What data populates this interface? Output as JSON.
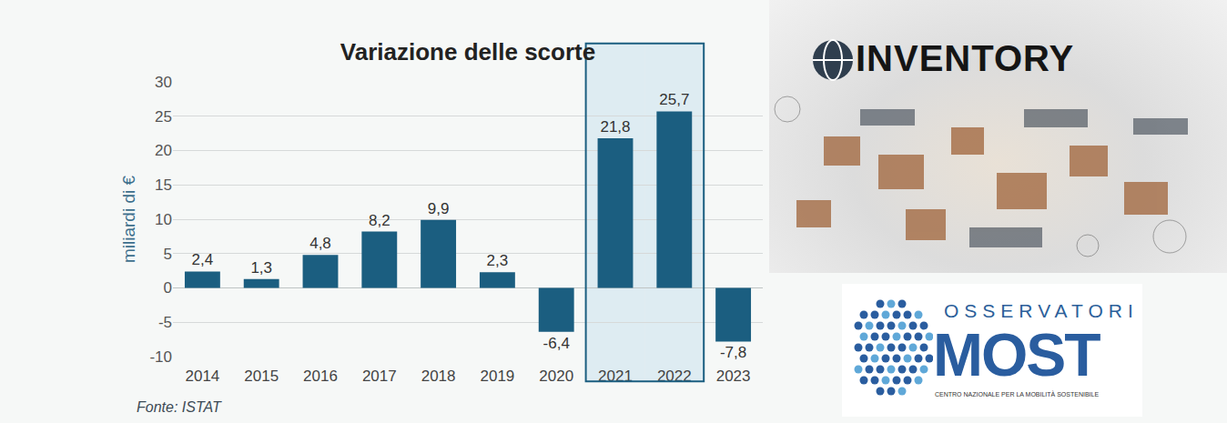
{
  "chart_data": {
    "type": "bar",
    "title": "Variazione delle scorte",
    "y_label": "miliardi di €",
    "source": "Fonte: ISTAT",
    "categories": [
      "2014",
      "2015",
      "2016",
      "2017",
      "2018",
      "2019",
      "2020",
      "2021",
      "2022",
      "2023"
    ],
    "values": [
      2.4,
      1.3,
      4.8,
      8.2,
      9.9,
      2.3,
      -6.4,
      21.8,
      25.7,
      -7.8
    ],
    "value_labels": [
      "2,4",
      "1,3",
      "4,8",
      "8,2",
      "9,9",
      "2,3",
      "-6,4",
      "21,8",
      "25,7",
      "-7,8"
    ],
    "color": "#1b5e80",
    "ylim": [
      -10,
      30
    ],
    "yticks": [
      -10,
      -5,
      0,
      5,
      10,
      15,
      20,
      25,
      30
    ],
    "grid": true,
    "data_labels": true,
    "highlight": [
      "2021",
      "2022"
    ],
    "annotations": [
      "INVENTORY",
      "OSSERVATORI",
      "MOST",
      "CENTRO NAZIONALE PER LA MOBILITÀ SOSTENIBILE"
    ]
  }
}
